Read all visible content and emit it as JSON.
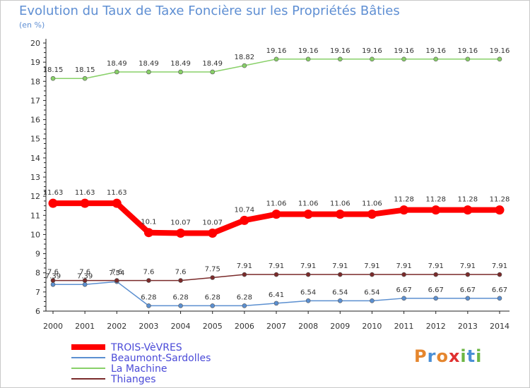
{
  "title": "Evolution du Taux de Taxe Foncière sur les Propriétés Bâties",
  "unit": "(en %)",
  "logo": {
    "letters": [
      "P",
      "r",
      "o",
      "x",
      "i",
      "t",
      "i"
    ],
    "colors": [
      "#e5862e",
      "#4a8fd6",
      "#e5862e",
      "#e03030",
      "#6cb644",
      "#4a8fd6",
      "#6cb644"
    ]
  },
  "chart_data": {
    "type": "line",
    "title": "Evolution du Taux de Taxe Foncière sur les Propriétés Bâties",
    "ylabel": "(en %)",
    "xlabel": "",
    "x": [
      "2000",
      "2001",
      "2002",
      "2003",
      "2004",
      "2005",
      "2006",
      "2007",
      "2008",
      "2009",
      "2010",
      "2011",
      "2012",
      "2013",
      "2014"
    ],
    "ylim": [
      6,
      20
    ],
    "yticks": [
      "6",
      "7",
      "8",
      "9",
      "10",
      "11",
      "12",
      "13",
      "14",
      "15",
      "16",
      "17",
      "18",
      "19",
      "20"
    ],
    "grid": false,
    "legend_position": "bottom-left",
    "series": [
      {
        "name": "TROIS-VèVRES",
        "color": "#ff0000",
        "emphasis": true,
        "values": [
          11.63,
          11.63,
          11.63,
          10.1,
          10.07,
          10.07,
          10.74,
          11.06,
          11.06,
          11.06,
          11.06,
          11.28,
          11.28,
          11.28,
          11.28
        ],
        "labels": [
          "11.63",
          "11.63",
          "11.63",
          "10.1",
          "10.07",
          "10.07",
          "10.74",
          "11.06",
          "11.06",
          "11.06",
          "11.06",
          "11.28",
          "11.28",
          "11.28",
          "11.28"
        ]
      },
      {
        "name": "Beaumont-Sardolles",
        "color": "#5b8fd0",
        "values": [
          7.39,
          7.39,
          7.54,
          6.28,
          6.28,
          6.28,
          6.28,
          6.41,
          6.54,
          6.54,
          6.54,
          6.67,
          6.67,
          6.67,
          6.67
        ],
        "labels": [
          "7.39",
          "7.39",
          "7.54",
          "6.28",
          "6.28",
          "6.28",
          "6.28",
          "6.41",
          "6.54",
          "6.54",
          "6.54",
          "6.67",
          "6.67",
          "6.67",
          "6.67"
        ]
      },
      {
        "name": "La Machine",
        "color": "#88d068",
        "values": [
          18.15,
          18.15,
          18.49,
          18.49,
          18.49,
          18.49,
          18.82,
          19.16,
          19.16,
          19.16,
          19.16,
          19.16,
          19.16,
          19.16,
          19.16
        ],
        "labels": [
          "18.15",
          "18.15",
          "18.49",
          "18.49",
          "18.49",
          "18.49",
          "18.82",
          "19.16",
          "19.16",
          "19.16",
          "19.16",
          "19.16",
          "19.16",
          "19.16",
          "19.16"
        ]
      },
      {
        "name": "Thianges",
        "color": "#7a2a2a",
        "values": [
          7.6,
          7.6,
          7.6,
          7.6,
          7.6,
          7.75,
          7.91,
          7.91,
          7.91,
          7.91,
          7.91,
          7.91,
          7.91,
          7.91,
          7.91
        ],
        "labels": [
          "7.6",
          "7.6",
          "7.6",
          "7.6",
          "7.6",
          "7.75",
          "7.91",
          "7.91",
          "7.91",
          "7.91",
          "7.91",
          "7.91",
          "7.91",
          "7.91",
          "7.91"
        ]
      }
    ]
  }
}
